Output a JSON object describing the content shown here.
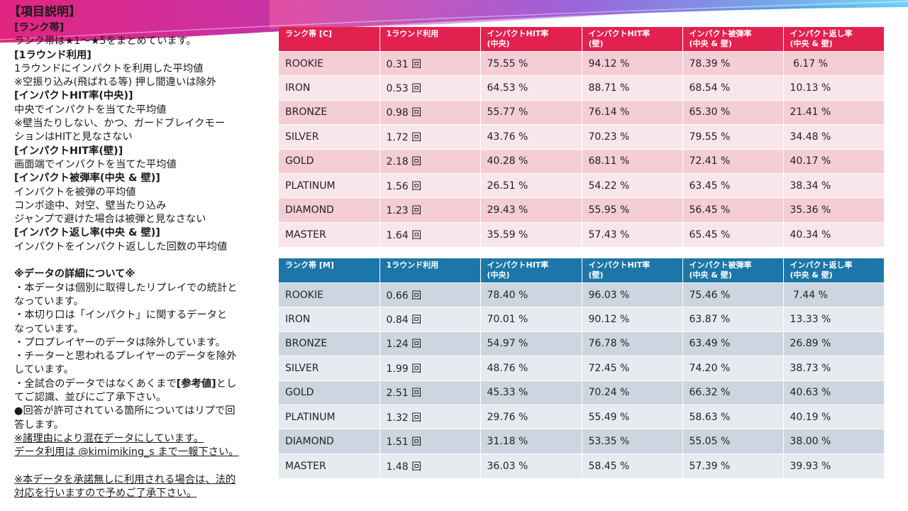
{
  "colors": {
    "c_header": "#e3214f",
    "c_row_dark": "#f4cdd5",
    "c_row_light": "#f9e6ea",
    "m_header": "#1c76a7",
    "m_row_dark": "#cdd6e0",
    "m_row_light": "#e6ebf0"
  },
  "notes": {
    "title": "【項目説明】",
    "rank_head": "[ランク帯]",
    "rank_desc": "ランク帯は★1～★5をまとめています。",
    "round_head": "[1ラウンド利用]",
    "round_desc1": "1ラウンドにインパクトを利用した平均値",
    "round_desc2": "※空振り込み(飛ばれる等) 押し間違いは除外",
    "hit_center_head": "[インパクトHIT率(中央)]",
    "hit_center_desc1": "中央でインパクトを当てた平均値",
    "hit_center_desc2": "※壁当たりしない、かつ、ガードブレイクモー",
    "hit_center_desc3": "ションはHITと見なさない",
    "hit_wall_head": "[インパクトHIT率(壁)]",
    "hit_wall_desc": "画面端でインパクトを当てた平均値",
    "hit_taken_head": "[インパクト被弾率(中央 & 壁)]",
    "hit_taken_desc1": "インパクトを被弾の平均値",
    "hit_taken_desc2": "コンボ途中、対空、壁当たり込み",
    "hit_taken_desc3": "ジャンプで避けた場合は被弾と見なさない",
    "return_head": "[インパクト返し率(中央 & 壁)]",
    "return_desc": "インパクトをインパクト返しした回数の平均値",
    "detail_head": "※データの詳細について※",
    "d1a": "・本データは個別に取得したリプレイでの統計と",
    "d1b": "なっています。",
    "d2a": "・本切り口は「インパクト」に関するデータと",
    "d2b": "なっています。",
    "d3": "・プロプレイヤーのデータは除外しています。",
    "d4a": "・チーターと思われるプレイヤーのデータを除外",
    "d4b": "しています。",
    "d5a_pre": "・全試合のデータではなくあくまで",
    "d5a_bold": "[参考値]",
    "d5a_post": "とし",
    "d5b": "てご認識、並びにご了承下さい。",
    "d6a": "●回答が許可されている箇所についてはリプで回",
    "d6b": "答します。",
    "d7a": "※諸理由により混在データにしています。",
    "d7b": "データ利用は @kimimiking_s まで一報下さい。",
    "d8a": "※本データを承諾無しに利用される場合は、法的",
    "d8b": "対応を行いますので予めご了承下さい。"
  },
  "headers_c": [
    {
      "l1": "ランク帯 [C]",
      "l2": ""
    },
    {
      "l1": "1ラウンド利用",
      "l2": ""
    },
    {
      "l1": "インパクトHIT率",
      "l2": "(中央)"
    },
    {
      "l1": "インパクトHIT率",
      "l2": "(壁)"
    },
    {
      "l1": "インパクト被弾率",
      "l2": "(中央 & 壁)"
    },
    {
      "l1": "インパクト返し率",
      "l2": "(中央 & 壁)"
    }
  ],
  "headers_m": [
    {
      "l1": "ランク帯 [M]",
      "l2": ""
    },
    {
      "l1": "1ラウンド利用",
      "l2": ""
    },
    {
      "l1": "インパクトHIT率",
      "l2": "(中央)"
    },
    {
      "l1": "インパクトHIT率",
      "l2": "(壁)"
    },
    {
      "l1": "インパクト被弾率",
      "l2": "(中央 & 壁)"
    },
    {
      "l1": "インパクト返し率",
      "l2": "(中央 & 壁)"
    }
  ],
  "rows_c": [
    [
      "ROOKIE",
      "0.31 回",
      "75.55 %",
      "94.12 %",
      "78.39 %",
      " 6.17 %"
    ],
    [
      "IRON",
      "0.53 回",
      "64.53 %",
      "88.71 %",
      "68.54 %",
      "10.13 %"
    ],
    [
      "BRONZE",
      "0.98 回",
      "55.77 %",
      "76.14 %",
      "65.30 %",
      "21.41 %"
    ],
    [
      "SILVER",
      "1.72 回",
      "43.76 %",
      "70.23 %",
      "79.55 %",
      "34.48 %"
    ],
    [
      "GOLD",
      "2.18 回",
      "40.28 %",
      "68.11 %",
      "72.41 %",
      "40.17 %"
    ],
    [
      "PLATINUM",
      "1.56 回",
      "26.51 %",
      "54.22 %",
      "63.45 %",
      "38.34 %"
    ],
    [
      "DIAMOND",
      "1.23 回",
      "29.43 %",
      "55.95 %",
      "56.45 %",
      "35.36 %"
    ],
    [
      "MASTER",
      "1.64 回",
      "35.59 %",
      "57.43 %",
      "65.45 %",
      "40.34 %"
    ]
  ],
  "rows_m": [
    [
      "ROOKIE",
      "0.66 回",
      "78.40 %",
      "96.03 %",
      "75.46 %",
      " 7.44 %"
    ],
    [
      "IRON",
      "0.84 回",
      "70.01 %",
      "90.12 %",
      "63.87 %",
      "13.33 %"
    ],
    [
      "BRONZE",
      "1.24 回",
      "54.97 %",
      "76.78 %",
      "63.49 %",
      "26.89 %"
    ],
    [
      "SILVER",
      "1.99 回",
      "48.76 %",
      "72.45 %",
      "74.20 %",
      "38.73 %"
    ],
    [
      "GOLD",
      "2.51 回",
      "45.33 %",
      "70.24 %",
      "66.32 %",
      "40.63 %"
    ],
    [
      "PLATINUM",
      "1.32 回",
      "29.76 %",
      "55.49 %",
      "58.63 %",
      "40.19 %"
    ],
    [
      "DIAMOND",
      "1.51 回",
      "31.18 %",
      "53.35 %",
      "55.05 %",
      "38.00 %"
    ],
    [
      "MASTER",
      "1.48 回",
      "36.03 %",
      "58.45 %",
      "57.39 %",
      "39.93 %"
    ]
  ]
}
